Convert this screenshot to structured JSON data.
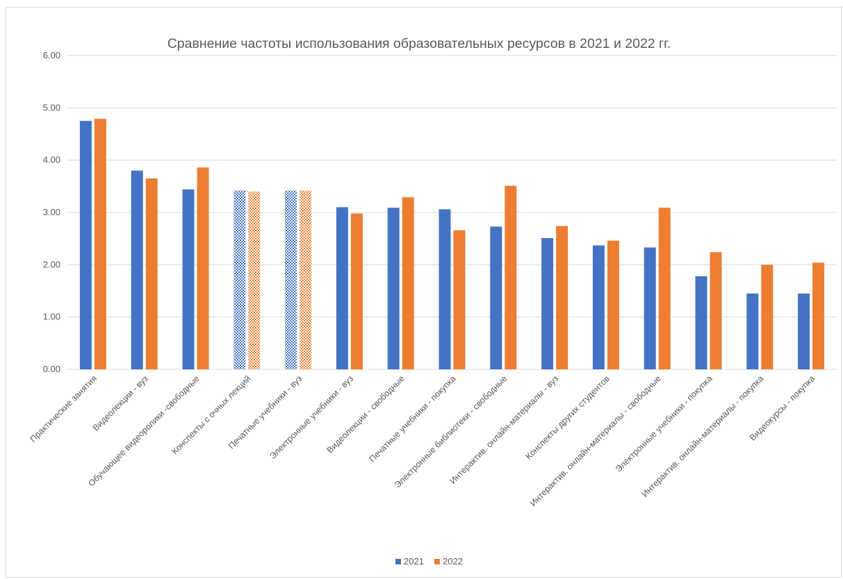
{
  "colors": {
    "2021": "#4472c4",
    "2022": "#ed7d31",
    "grid": "#d9d9d9",
    "text": "#595959"
  },
  "chart_data": {
    "type": "bar",
    "title": "Сравнение частоты использования образовательных ресурсов в 2021 и 2022 гг.",
    "xlabel": "",
    "ylabel": "",
    "ylim": [
      0,
      6
    ],
    "yticks": [
      "0.00",
      "1.00",
      "2.00",
      "3.00",
      "4.00",
      "5.00",
      "6.00"
    ],
    "grid": true,
    "legend_position": "bottom",
    "categories": [
      "Практические занятия",
      "Видеолекции - вуз",
      "Обучающее видеоролики -свободные",
      "Конспекты с очных лекций",
      "Печатные учебники - вуз",
      "Электронные учебники - вуз",
      "Видеолекции - свободные",
      "Печатные учебники - покупка",
      "Электронные библиотеки - свободные",
      "Интерактив. онлайн-материалы - вуз",
      "Конспекты других студентов",
      "Интерактив. онлайн-материалы - свободные",
      "Электронные учебники - покупка",
      "Интерактив. онлайн-материалы - покупка",
      "Видеокурсы - покупка"
    ],
    "patterned_categories": [
      3,
      4
    ],
    "series": [
      {
        "name": "2021",
        "values": [
          4.75,
          3.8,
          3.44,
          3.42,
          3.42,
          3.1,
          3.09,
          3.06,
          2.73,
          2.51,
          2.37,
          2.33,
          1.78,
          1.45,
          1.45
        ]
      },
      {
        "name": "2022",
        "values": [
          4.79,
          3.65,
          3.86,
          3.4,
          3.42,
          2.98,
          3.29,
          2.66,
          3.51,
          2.74,
          2.46,
          3.09,
          2.24,
          2.0,
          2.04
        ]
      }
    ]
  }
}
